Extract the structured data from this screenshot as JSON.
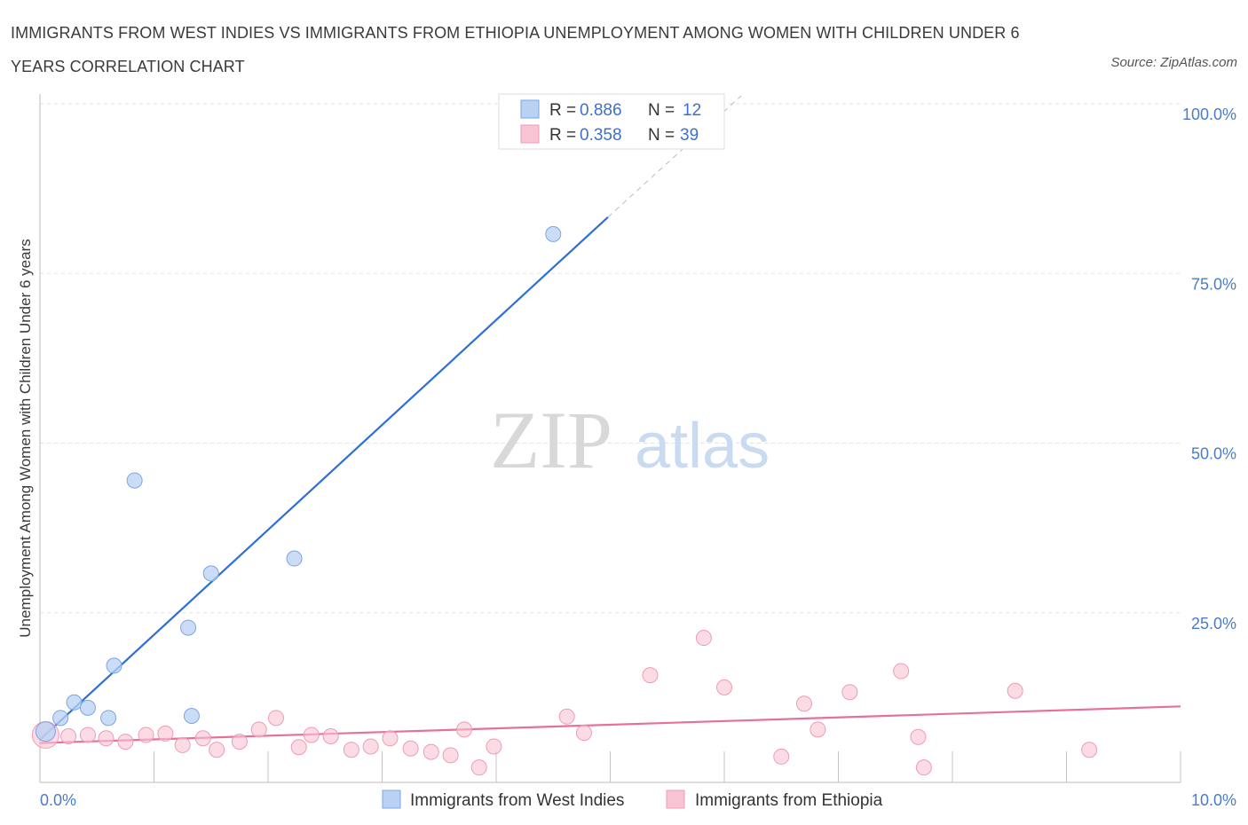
{
  "title": "IMMIGRANTS FROM WEST INDIES VS IMMIGRANTS FROM ETHIOPIA UNEMPLOYMENT AMONG WOMEN WITH CHILDREN UNDER 6 YEARS CORRELATION CHART",
  "source": "Source: ZipAtlas.com",
  "watermark": {
    "zip": "ZIP",
    "atlas": "atlas"
  },
  "colors": {
    "west_indies_fill": "#b9d2f3",
    "west_indies_stroke": "#7aa6e3",
    "west_indies_line": "#2d6fd6",
    "ethiopia_fill": "#f8c4d3",
    "ethiopia_stroke": "#ef9bb4",
    "ethiopia_line": "#e5719a",
    "tick_label": "#4a7cc8",
    "grid": "#e2e2e2"
  },
  "legend_top": {
    "rows": [
      {
        "r_label": "R = ",
        "r_value": "0.886",
        "n_label": "N = ",
        "n_value": "12"
      },
      {
        "r_label": "R = ",
        "r_value": "0.358",
        "n_label": "N = ",
        "n_value": "39"
      }
    ]
  },
  "chart_data": {
    "type": "scatter",
    "title": "IMMIGRANTS FROM WEST INDIES VS IMMIGRANTS FROM ETHIOPIA UNEMPLOYMENT AMONG WOMEN WITH CHILDREN UNDER 6 YEARS CORRELATION CHART",
    "xlabel": "",
    "ylabel": "Unemployment Among Women with Children Under 6 years",
    "xlim": [
      0,
      10
    ],
    "ylim": [
      0,
      100
    ],
    "x_tick_labels": [
      "0.0%",
      "10.0%"
    ],
    "y_tick_labels": [
      "25.0%",
      "50.0%",
      "75.0%",
      "100.0%"
    ],
    "y_ticks": [
      25,
      50,
      75,
      100
    ],
    "grid": true,
    "legend_position": "top-center",
    "series": [
      {
        "name": "Immigrants from West Indies",
        "points": [
          [
            0.05,
            7.5
          ],
          [
            0.18,
            9.5
          ],
          [
            0.3,
            11.8
          ],
          [
            0.42,
            11.0
          ],
          [
            0.65,
            17.2
          ],
          [
            0.6,
            9.5
          ],
          [
            0.83,
            44.5
          ],
          [
            1.3,
            22.8
          ],
          [
            1.5,
            30.8
          ],
          [
            1.33,
            9.8
          ],
          [
            2.23,
            33.0
          ],
          [
            4.5,
            80.8
          ]
        ],
        "trend": {
          "x1": 0.0,
          "y1": 6.3,
          "x2": 4.98,
          "y2": 83.3,
          "dash_x2": 6.15,
          "dash_y2": 101.2
        }
      },
      {
        "name": "Immigrants from Ethiopia",
        "points": [
          [
            0.05,
            7.0
          ],
          [
            0.25,
            6.8
          ],
          [
            0.42,
            7.0
          ],
          [
            0.58,
            6.5
          ],
          [
            0.75,
            6.0
          ],
          [
            0.93,
            7.0
          ],
          [
            1.1,
            7.2
          ],
          [
            1.25,
            5.5
          ],
          [
            1.43,
            6.5
          ],
          [
            1.55,
            4.8
          ],
          [
            1.75,
            6.0
          ],
          [
            1.92,
            7.8
          ],
          [
            2.07,
            9.5
          ],
          [
            2.27,
            5.2
          ],
          [
            2.38,
            7.0
          ],
          [
            2.55,
            6.8
          ],
          [
            2.73,
            4.8
          ],
          [
            2.9,
            5.3
          ],
          [
            3.07,
            6.5
          ],
          [
            3.25,
            5.0
          ],
          [
            3.43,
            4.5
          ],
          [
            3.6,
            4.0
          ],
          [
            3.72,
            7.8
          ],
          [
            3.85,
            2.2
          ],
          [
            3.98,
            5.3
          ],
          [
            4.62,
            9.7
          ],
          [
            4.77,
            7.3
          ],
          [
            5.35,
            15.8
          ],
          [
            5.82,
            21.3
          ],
          [
            6.0,
            14.0
          ],
          [
            6.5,
            3.8
          ],
          [
            6.7,
            11.6
          ],
          [
            6.82,
            7.8
          ],
          [
            7.1,
            13.3
          ],
          [
            7.55,
            16.4
          ],
          [
            7.7,
            6.7
          ],
          [
            7.75,
            2.2
          ],
          [
            8.55,
            13.5
          ],
          [
            9.2,
            4.8
          ]
        ],
        "trend": {
          "x1": 0.0,
          "y1": 5.8,
          "x2": 10.0,
          "y2": 11.2
        }
      }
    ]
  }
}
